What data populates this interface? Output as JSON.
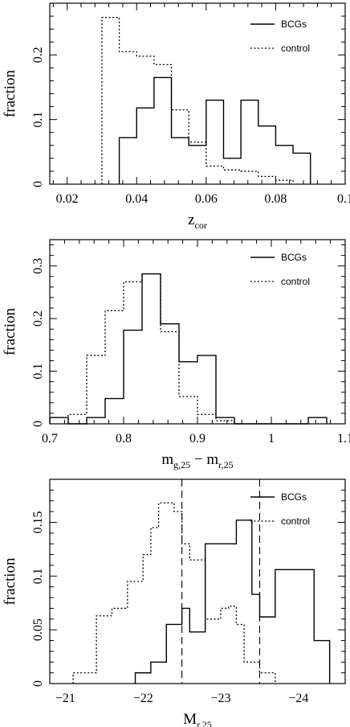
{
  "chart_data": [
    {
      "type": "histogram",
      "ylabel": "fraction",
      "xlabel": "z",
      "xlabel_sub": "cor",
      "xlim": [
        0.015,
        0.1
      ],
      "ylim": [
        0,
        0.28
      ],
      "xticks": [
        0.02,
        0.04,
        0.06,
        0.08,
        0.1
      ],
      "xtick_labels": [
        "0.02",
        "0.04",
        "0.06",
        "0.08",
        "0.1"
      ],
      "yticks": [
        0,
        0.1,
        0.2
      ],
      "ytick_labels": [
        "0",
        "0.1",
        "0.2"
      ],
      "legend": [
        {
          "label": "BCGs",
          "style": "solid"
        },
        {
          "label": "control",
          "style": "dotted"
        }
      ],
      "series": [
        {
          "name": "BCGs",
          "style": "solid",
          "edges": [
            0.035,
            0.04,
            0.045,
            0.05,
            0.055,
            0.06,
            0.065,
            0.07,
            0.075,
            0.08,
            0.085,
            0.09
          ],
          "values": [
            0.072,
            0.118,
            0.165,
            0.072,
            0.06,
            0.13,
            0.04,
            0.13,
            0.09,
            0.06,
            0.048
          ]
        },
        {
          "name": "control",
          "style": "dotted",
          "edges": [
            0.03,
            0.035,
            0.04,
            0.045,
            0.05,
            0.055,
            0.06,
            0.065,
            0.07,
            0.075,
            0.08,
            0.085
          ],
          "values": [
            0.258,
            0.205,
            0.198,
            0.185,
            0.115,
            0.065,
            0.028,
            0.022,
            0.02,
            0.012,
            0.006
          ]
        }
      ]
    },
    {
      "type": "histogram",
      "ylabel": "fraction",
      "xlabel": "m",
      "xlabel_sub": "g,25",
      "xlabel_mid": " − m",
      "xlabel_sub2": "r,25",
      "xlim": [
        0.7,
        1.1
      ],
      "ylim": [
        0,
        0.35
      ],
      "xticks": [
        0.7,
        0.8,
        0.9,
        1.0,
        1.1
      ],
      "xtick_labels": [
        "0.7",
        "0.8",
        "0.9",
        "1",
        "1.1"
      ],
      "yticks": [
        0,
        0.1,
        0.2,
        0.3
      ],
      "ytick_labels": [
        "0",
        "0.1",
        "0.2",
        "0.3"
      ],
      "legend": [
        {
          "label": "BCGs",
          "style": "solid"
        },
        {
          "label": "control",
          "style": "dotted"
        }
      ],
      "series": [
        {
          "name": "BCGs",
          "style": "solid",
          "edges": [
            0.7,
            0.725,
            0.75,
            0.775,
            0.8,
            0.825,
            0.85,
            0.875,
            0.9,
            0.925,
            0.95,
            0.975,
            1.0,
            1.025,
            1.05,
            1.075
          ],
          "values": [
            0.012,
            0.0,
            0.012,
            0.048,
            0.178,
            0.285,
            0.19,
            0.118,
            0.13,
            0.012,
            0.0,
            0.0,
            0.0,
            0.0,
            0.012
          ]
        },
        {
          "name": "control",
          "style": "dotted",
          "edges": [
            0.725,
            0.75,
            0.775,
            0.8,
            0.825,
            0.85,
            0.875,
            0.9,
            0.925,
            0.95
          ],
          "values": [
            0.018,
            0.13,
            0.215,
            0.27,
            0.285,
            0.175,
            0.052,
            0.018,
            0.006
          ]
        }
      ]
    },
    {
      "type": "histogram",
      "ylabel": "fraction",
      "xlabel": "M",
      "xlabel_sub": "r,25",
      "xlim": [
        -20.8,
        -24.6
      ],
      "ylim": [
        0,
        0.19
      ],
      "xticks": [
        -21,
        -22,
        -23,
        -24
      ],
      "xtick_labels": [
        "−21",
        "−22",
        "−23",
        "−24"
      ],
      "yticks": [
        0,
        0.05,
        0.1,
        0.15
      ],
      "ytick_labels": [
        "0",
        "0.05",
        "0.1",
        "0.15"
      ],
      "vlines": [
        -22.5,
        -23.5
      ],
      "legend": [
        {
          "label": "BCGs",
          "style": "solid"
        },
        {
          "label": "control",
          "style": "dotted"
        }
      ],
      "series": [
        {
          "name": "BCGs",
          "style": "solid",
          "edges": [
            -21.9,
            -22.1,
            -22.3,
            -22.5,
            -22.6,
            -22.8,
            -23.2,
            -23.4,
            -23.5,
            -23.7,
            -24.2,
            -24.4
          ],
          "values": [
            0.01,
            0.02,
            0.055,
            0.07,
            0.048,
            0.13,
            0.152,
            0.083,
            0.062,
            0.106,
            0.04
          ]
        },
        {
          "name": "control",
          "style": "dotted",
          "edges": [
            -21.1,
            -21.3,
            -21.4,
            -21.6,
            -21.8,
            -22.0,
            -22.1,
            -22.2,
            -22.4,
            -22.5,
            -22.6,
            -22.8,
            -23.0,
            -23.1,
            -23.2,
            -23.3,
            -23.5,
            -23.7
          ],
          "values": [
            0.01,
            0.01,
            0.063,
            0.07,
            0.095,
            0.12,
            0.145,
            0.168,
            0.16,
            0.13,
            0.115,
            0.06,
            0.07,
            0.072,
            0.055,
            0.02,
            0.01
          ]
        }
      ]
    }
  ]
}
